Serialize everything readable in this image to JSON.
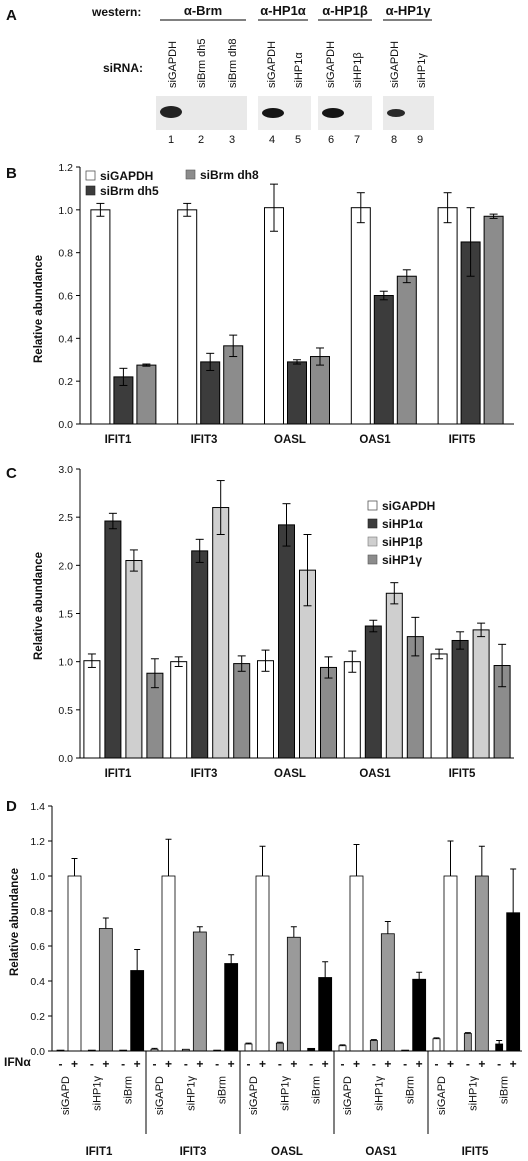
{
  "colors": {
    "siGAPDH": "#ffffff",
    "siBrm dh5": "#3c3c3c",
    "siBrm dh8": "#8c8c8c",
    "siHP1a": "#3c3c3c",
    "siHP1b": "#cfcfcf",
    "siHP1g": "#8c8c8c",
    "D_gapd": "#ffffff",
    "D_hp1g": "#9a9a9a",
    "D_brm": "#000000"
  },
  "panelA": {
    "label": "A",
    "western_label": "western:",
    "sirna_label": "siRNA:",
    "antibodies": [
      "α-Brm",
      "α-HP1α",
      "α-HP1β",
      "α-HP1γ"
    ],
    "lanes": [
      "siGAPDH",
      "siBrm dh5",
      "siBrm dh8",
      "siGAPDH",
      "siHP1α",
      "siGAPDH",
      "siHP1β",
      "siGAPDH",
      "siHP1γ"
    ],
    "lane_numbers": [
      "1",
      "2",
      "3",
      "4",
      "5",
      "6",
      "7",
      "8",
      "9"
    ]
  },
  "chart_data": [
    {
      "panel": "B",
      "type": "bar",
      "ylabel": "Relative abundance",
      "ylim": [
        0,
        1.2
      ],
      "yticks": [
        "0.0",
        "0.2",
        "0.4",
        "0.6",
        "0.8",
        "1.0",
        "1.2"
      ],
      "categories": [
        "IFIT1",
        "IFIT3",
        "OASL",
        "OAS1",
        "IFIT5"
      ],
      "legend_position": "top-left",
      "series": [
        {
          "name": "siGAPDH",
          "values": [
            1.0,
            1.0,
            1.01,
            1.01,
            1.01
          ],
          "errors": [
            0.03,
            0.03,
            0.11,
            0.07,
            0.07
          ]
        },
        {
          "name": "siBrm dh5",
          "values": [
            0.22,
            0.29,
            0.29,
            0.6,
            0.85
          ],
          "errors": [
            0.04,
            0.04,
            0.01,
            0.02,
            0.16
          ]
        },
        {
          "name": "siBrm dh8",
          "values": [
            0.275,
            0.365,
            0.315,
            0.69,
            0.97
          ],
          "errors": [
            0.005,
            0.05,
            0.04,
            0.03,
            0.01
          ]
        }
      ]
    },
    {
      "panel": "C",
      "type": "bar",
      "ylabel": "Relative abundance",
      "ylim": [
        0,
        3.0
      ],
      "yticks": [
        "0.0",
        "0.5",
        "1.0",
        "1.5",
        "2.0",
        "2.5",
        "3.0"
      ],
      "categories": [
        "IFIT1",
        "IFIT3",
        "OASL",
        "OAS1",
        "IFIT5"
      ],
      "legend_position": "right",
      "series": [
        {
          "name": "siGAPDH",
          "values": [
            1.01,
            1.0,
            1.01,
            1.0,
            1.08
          ],
          "errors": [
            0.07,
            0.05,
            0.11,
            0.11,
            0.05
          ]
        },
        {
          "name": "siHP1α",
          "values": [
            2.46,
            2.15,
            2.42,
            1.37,
            1.22
          ],
          "errors": [
            0.08,
            0.12,
            0.22,
            0.06,
            0.09
          ]
        },
        {
          "name": "siHP1β",
          "values": [
            2.05,
            2.6,
            1.95,
            1.71,
            1.33
          ],
          "errors": [
            0.11,
            0.28,
            0.37,
            0.11,
            0.07
          ]
        },
        {
          "name": "siHP1γ",
          "values": [
            0.88,
            0.98,
            0.94,
            1.26,
            0.96
          ],
          "errors": [
            0.15,
            0.08,
            0.11,
            0.2,
            0.22
          ]
        }
      ]
    },
    {
      "panel": "D",
      "type": "bar",
      "ylabel": "Relative abundance",
      "ylim": [
        0,
        1.4
      ],
      "yticks": [
        "0.0",
        "0.2",
        "0.4",
        "0.6",
        "0.8",
        "1.0",
        "1.2",
        "1.4"
      ],
      "categories": [
        "IFIT1",
        "IFIT3",
        "OASL",
        "OAS1",
        "IFIT5"
      ],
      "ifn_label": "IFNα",
      "ifn_signs": [
        "-",
        "+"
      ],
      "sirnas": [
        "siGAPD",
        "siHP1γ",
        "siBrm"
      ],
      "values": [
        [
          [
            0.005,
            1.0
          ],
          [
            0.005,
            0.7
          ],
          [
            0.005,
            0.46
          ]
        ],
        [
          [
            0.01,
            1.0
          ],
          [
            0.01,
            0.68
          ],
          [
            0.005,
            0.5
          ]
        ],
        [
          [
            0.04,
            1.0
          ],
          [
            0.045,
            0.65
          ],
          [
            0.015,
            0.42
          ]
        ],
        [
          [
            0.03,
            1.0
          ],
          [
            0.06,
            0.67
          ],
          [
            0.005,
            0.41
          ]
        ],
        [
          [
            0.07,
            1.0
          ],
          [
            0.1,
            1.0
          ],
          [
            0.04,
            0.79
          ]
        ]
      ],
      "errors": [
        [
          [
            0.0,
            0.1
          ],
          [
            0.0,
            0.06
          ],
          [
            0.0,
            0.12
          ]
        ],
        [
          [
            0.005,
            0.21
          ],
          [
            0.0,
            0.03
          ],
          [
            0.0,
            0.05
          ]
        ],
        [
          [
            0.005,
            0.17
          ],
          [
            0.005,
            0.06
          ],
          [
            0.0,
            0.09
          ]
        ],
        [
          [
            0.005,
            0.18
          ],
          [
            0.005,
            0.07
          ],
          [
            0.0,
            0.04
          ]
        ],
        [
          [
            0.005,
            0.2
          ],
          [
            0.005,
            0.17
          ],
          [
            0.02,
            0.25
          ]
        ]
      ]
    }
  ]
}
